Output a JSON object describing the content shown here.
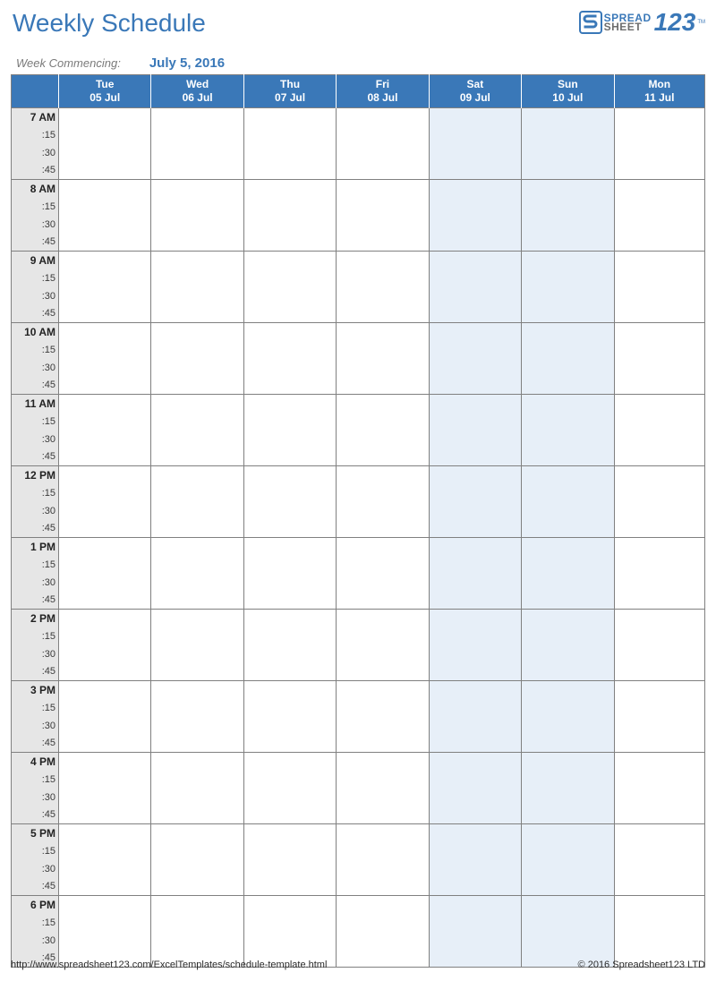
{
  "title": "Weekly Schedule",
  "logo": {
    "line1": "SPREAD",
    "line2": "SHEET",
    "digits": "123",
    "tm": "TM"
  },
  "week_commencing_label": "Week Commencing:",
  "week_commencing_date": "July 5, 2016",
  "colors": {
    "accent": "#3a78b8",
    "header_text": "#ffffff",
    "timecol_bg": "#e6e6e6",
    "weekend_bg": "#e7eff8",
    "grid_border": "#808080",
    "background": "#ffffff",
    "muted_text": "#7a7a7a"
  },
  "days": [
    {
      "name": "Tue",
      "date": "05 Jul",
      "weekend": false
    },
    {
      "name": "Wed",
      "date": "06 Jul",
      "weekend": false
    },
    {
      "name": "Thu",
      "date": "07 Jul",
      "weekend": false
    },
    {
      "name": "Fri",
      "date": "08 Jul",
      "weekend": false
    },
    {
      "name": "Sat",
      "date": "09 Jul",
      "weekend": true
    },
    {
      "name": "Sun",
      "date": "10 Jul",
      "weekend": true
    },
    {
      "name": "Mon",
      "date": "11 Jul",
      "weekend": false
    }
  ],
  "hours": [
    "7 AM",
    "8 AM",
    "9 AM",
    "10 AM",
    "11 AM",
    "12 PM",
    "1 PM",
    "2 PM",
    "3 PM",
    "4 PM",
    "5 PM",
    "6 PM"
  ],
  "sublabels": [
    ":15",
    ":30",
    ":45"
  ],
  "footer": {
    "url": "http://www.spreadsheet123.com/ExcelTemplates/schedule-template.html",
    "copyright": "© 2016 Spreadsheet123 LTD"
  }
}
